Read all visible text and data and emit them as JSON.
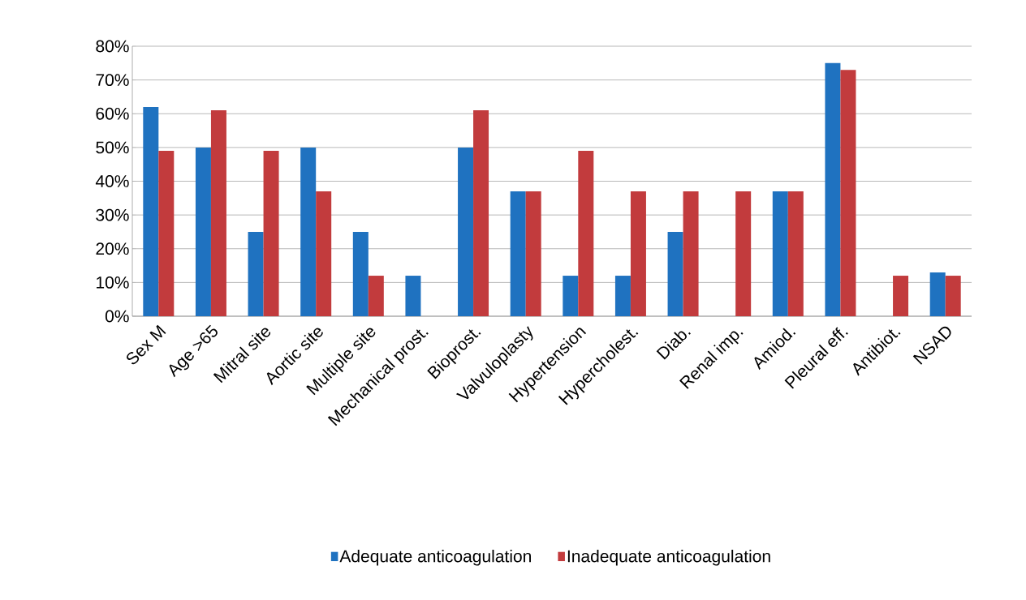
{
  "chart_data": {
    "type": "bar",
    "categories": [
      "Sex M",
      "Age >65",
      "Mitral site",
      "Aortic site",
      "Multiple site",
      "Mechanical prost.",
      "Bioprost.",
      "Valvuloplasty",
      "Hypertension",
      "Hypercholest.",
      "Diab.",
      "Renal imp.",
      "Amiod.",
      "Pleural eff.",
      "Antibiot.",
      "NSAD"
    ],
    "series": [
      {
        "name": "Adequate anticoagulation",
        "color": "#1f72c0",
        "values": [
          62,
          50,
          25,
          50,
          25,
          12,
          50,
          37,
          12,
          12,
          25,
          0,
          37,
          75,
          0,
          13
        ]
      },
      {
        "name": "Inadequate anticoagulation",
        "color": "#c23b3d",
        "values": [
          49,
          61,
          49,
          37,
          12,
          0,
          61,
          37,
          49,
          37,
          37,
          37,
          37,
          73,
          12,
          12
        ]
      }
    ],
    "ylim": [
      0,
      80
    ],
    "yticks": [
      {
        "value": 0,
        "label": "0%"
      },
      {
        "value": 10,
        "label": "10%"
      },
      {
        "value": 20,
        "label": "20%"
      },
      {
        "value": 30,
        "label": "30%"
      },
      {
        "value": 40,
        "label": "40%"
      },
      {
        "value": 50,
        "label": "50%"
      },
      {
        "value": 60,
        "label": "60%"
      },
      {
        "value": 70,
        "label": "70%"
      },
      {
        "value": 80,
        "label": "80%"
      }
    ],
    "grid": "y",
    "legend": "bottom"
  }
}
